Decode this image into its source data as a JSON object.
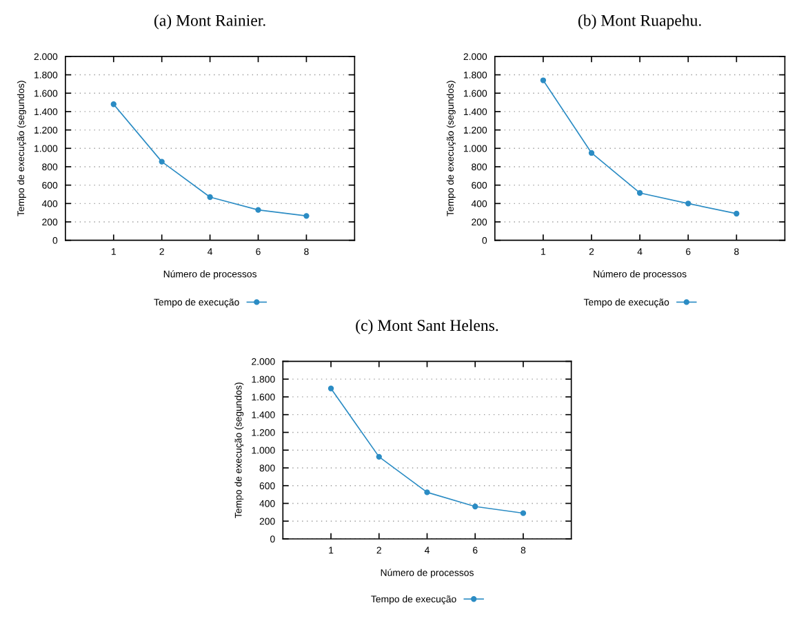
{
  "chart_data": [
    {
      "type": "line",
      "title": "(a) Mont Rainier.",
      "xlabel": "Número de processos",
      "ylabel": "Tempo de execução (segundos)",
      "categories": [
        "1",
        "2",
        "4",
        "6",
        "8"
      ],
      "series": [
        {
          "name": "Tempo de execução",
          "color": "#2b8cc4",
          "values": [
            1480,
            855,
            470,
            330,
            265
          ]
        }
      ],
      "ylim": [
        0,
        2000
      ],
      "yticks": [
        0,
        {
          "value": 200,
          "label": "200"
        },
        {
          "value": 400,
          "label": "400"
        },
        {
          "value": 600,
          "label": "600"
        },
        {
          "value": 800,
          "label": "800"
        },
        {
          "value": 1000,
          "label": "1.000"
        },
        {
          "value": 1200,
          "label": "1.200"
        },
        {
          "value": 1400,
          "label": "1.400"
        },
        {
          "value": 1600,
          "label": "1.600"
        },
        {
          "value": 1800,
          "label": "1.800"
        },
        {
          "value": 2000,
          "label": "2.000"
        }
      ],
      "grid": "y",
      "legend": "bottom",
      "marker": "circle",
      "line_style": "solid"
    },
    {
      "type": "line",
      "title": "(b) Mont Ruapehu.",
      "xlabel": "Número de processos",
      "ylabel": "Tempo de execução (segundos)",
      "categories": [
        "1",
        "2",
        "4",
        "6",
        "8"
      ],
      "series": [
        {
          "name": "Tempo de execução",
          "color": "#2b8cc4",
          "values": [
            1740,
            950,
            515,
            400,
            290
          ]
        }
      ],
      "ylim": [
        0,
        2000
      ],
      "yticks": [
        0,
        {
          "value": 200,
          "label": "200"
        },
        {
          "value": 400,
          "label": "400"
        },
        {
          "value": 600,
          "label": "600"
        },
        {
          "value": 800,
          "label": "800"
        },
        {
          "value": 1000,
          "label": "1.000"
        },
        {
          "value": 1200,
          "label": "1.200"
        },
        {
          "value": 1400,
          "label": "1.400"
        },
        {
          "value": 1600,
          "label": "1.600"
        },
        {
          "value": 1800,
          "label": "1.800"
        },
        {
          "value": 2000,
          "label": "2.000"
        }
      ],
      "grid": "y",
      "legend": "bottom",
      "marker": "circle",
      "line_style": "solid"
    },
    {
      "type": "line",
      "title": "(c) Mont Sant Helens.",
      "xlabel": "Número de processos",
      "ylabel": "Tempo de execução (segundos)",
      "categories": [
        "1",
        "2",
        "4",
        "6",
        "8"
      ],
      "series": [
        {
          "name": "Tempo de execução",
          "color": "#2b8cc4",
          "values": [
            1695,
            925,
            525,
            365,
            290
          ]
        }
      ],
      "ylim": [
        0,
        2000
      ],
      "yticks": [
        0,
        {
          "value": 200,
          "label": "200"
        },
        {
          "value": 400,
          "label": "400"
        },
        {
          "value": 600,
          "label": "600"
        },
        {
          "value": 800,
          "label": "800"
        },
        {
          "value": 1000,
          "label": "1.000"
        },
        {
          "value": 1200,
          "label": "1.200"
        },
        {
          "value": 1400,
          "label": "1.400"
        },
        {
          "value": 1600,
          "label": "1.600"
        },
        {
          "value": 1800,
          "label": "1.800"
        },
        {
          "value": 2000,
          "label": "2.000"
        }
      ],
      "grid": "y",
      "legend": "bottom",
      "marker": "circle",
      "line_style": "solid"
    }
  ]
}
